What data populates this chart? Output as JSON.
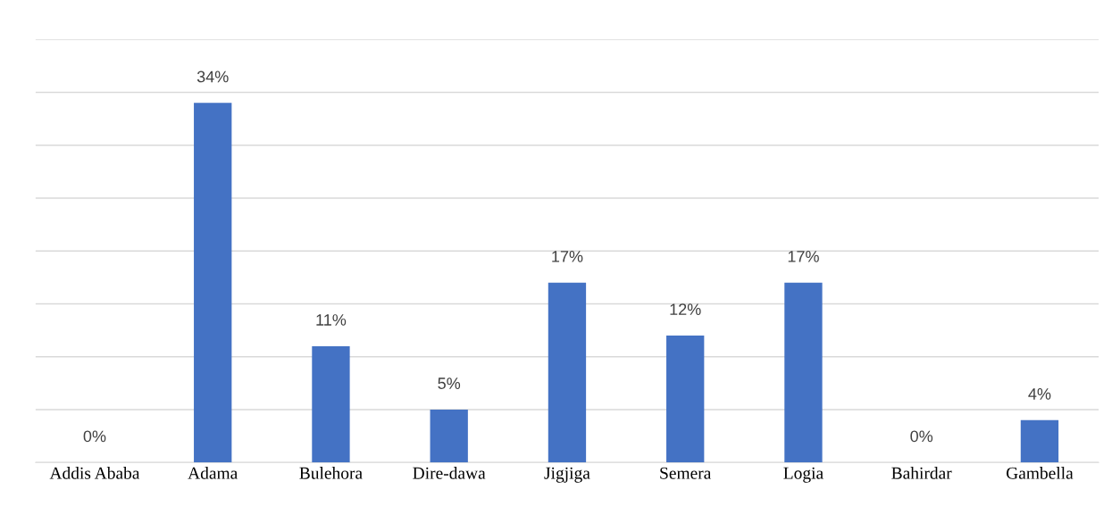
{
  "chart_data": {
    "type": "bar",
    "categories": [
      "Addis Ababa",
      "Adama",
      "Bulehora",
      "Dire-dawa",
      "Jigjiga",
      "Semera",
      "Logia",
      "Bahirdar",
      "Gambella"
    ],
    "values": [
      0,
      34,
      11,
      5,
      17,
      12,
      17,
      0,
      4
    ],
    "value_labels": [
      "0%",
      "34%",
      "11%",
      "5%",
      "17%",
      "12%",
      "17%",
      "0%",
      "4%"
    ],
    "color": "#4472c4",
    "ylim": [
      0,
      40
    ],
    "yticks": [
      {
        "value": 0,
        "label": null
      },
      {
        "value": 5,
        "label": null
      },
      {
        "value": 10,
        "label": null
      },
      {
        "value": 15,
        "label": null
      },
      {
        "value": 20,
        "label": null
      },
      {
        "value": 25,
        "label": null
      },
      {
        "value": 30,
        "label": null
      },
      {
        "value": 35,
        "label": null
      },
      {
        "value": 40,
        "label": null
      }
    ],
    "grid": "y",
    "tick_labels": "x"
  }
}
